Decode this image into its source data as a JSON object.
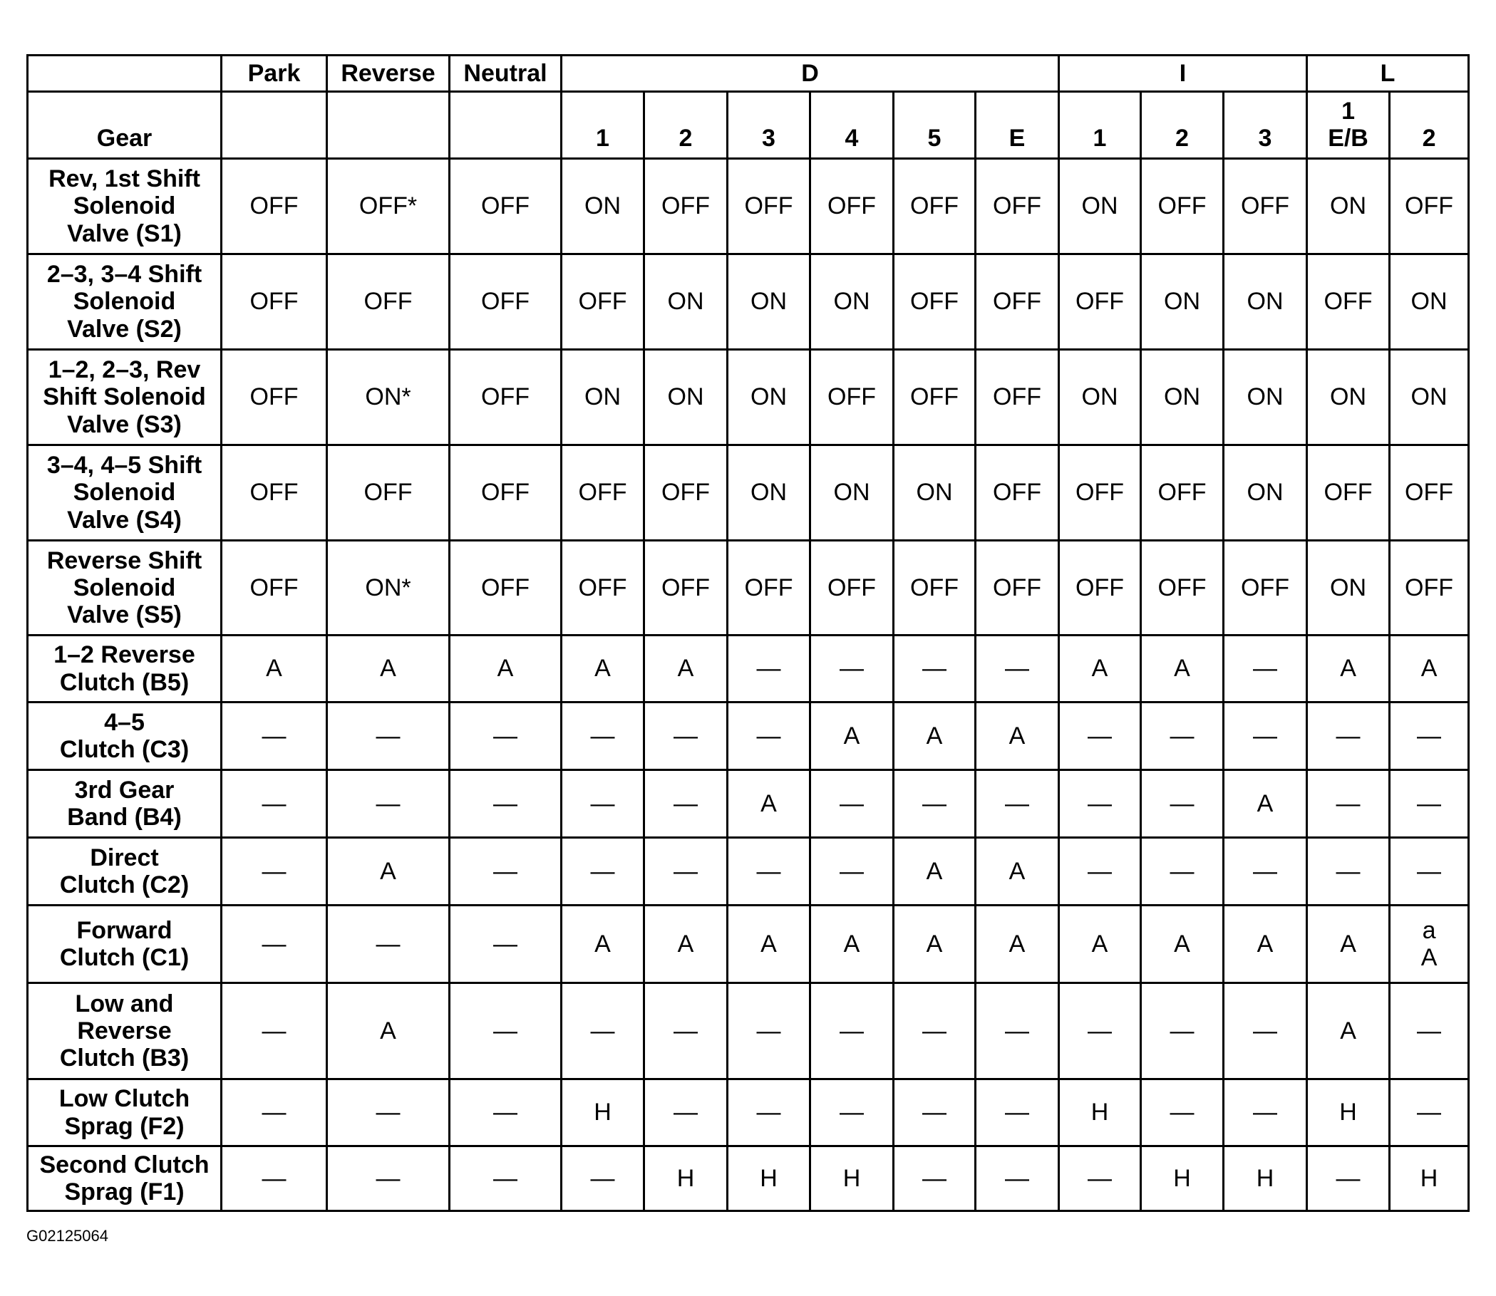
{
  "header": {
    "groups": [
      {
        "label": "",
        "span": 1
      },
      {
        "label": "Park",
        "span": 1
      },
      {
        "label": "Reverse",
        "span": 1
      },
      {
        "label": "Neutral",
        "span": 1
      },
      {
        "label": "D",
        "span": 6
      },
      {
        "label": "I",
        "span": 3
      },
      {
        "label": "L",
        "span": 2
      }
    ],
    "sub": [
      "Gear",
      "",
      "",
      "",
      "1",
      "2",
      "3",
      "4",
      "5",
      "E",
      "1",
      "2",
      "3",
      "1\nE/B",
      "2"
    ]
  },
  "rows": [
    {
      "label": "Rev, 1st Shift\nSolenoid\nValve (S1)",
      "values": [
        "OFF",
        "OFF*",
        "OFF",
        "ON",
        "OFF",
        "OFF",
        "OFF",
        "OFF",
        "OFF",
        "ON",
        "OFF",
        "OFF",
        "ON",
        "OFF"
      ]
    },
    {
      "label": "2–3, 3–4 Shift\nSolenoid\nValve (S2)",
      "values": [
        "OFF",
        "OFF",
        "OFF",
        "OFF",
        "ON",
        "ON",
        "ON",
        "OFF",
        "OFF",
        "OFF",
        "ON",
        "ON",
        "OFF",
        "ON"
      ]
    },
    {
      "label": "1–2, 2–3, Rev\nShift Solenoid\nValve (S3)",
      "values": [
        "OFF",
        "ON*",
        "OFF",
        "ON",
        "ON",
        "ON",
        "OFF",
        "OFF",
        "OFF",
        "ON",
        "ON",
        "ON",
        "ON",
        "ON"
      ]
    },
    {
      "label": "3–4, 4–5 Shift\nSolenoid\nValve (S4)",
      "values": [
        "OFF",
        "OFF",
        "OFF",
        "OFF",
        "OFF",
        "ON",
        "ON",
        "ON",
        "OFF",
        "OFF",
        "OFF",
        "ON",
        "OFF",
        "OFF"
      ]
    },
    {
      "label": "Reverse Shift\nSolenoid\nValve (S5)",
      "values": [
        "OFF",
        "ON*",
        "OFF",
        "OFF",
        "OFF",
        "OFF",
        "OFF",
        "OFF",
        "OFF",
        "OFF",
        "OFF",
        "OFF",
        "ON",
        "OFF"
      ]
    },
    {
      "label": "1–2 Reverse\nClutch (B5)",
      "values": [
        "A",
        "A",
        "A",
        "A",
        "A",
        "—",
        "—",
        "—",
        "—",
        "A",
        "A",
        "—",
        "A",
        "A"
      ]
    },
    {
      "label": "4–5\nClutch (C3)",
      "values": [
        "—",
        "—",
        "—",
        "—",
        "—",
        "—",
        "A",
        "A",
        "A",
        "—",
        "—",
        "—",
        "—",
        "—"
      ]
    },
    {
      "label": "3rd Gear\nBand (B4)",
      "values": [
        "—",
        "—",
        "—",
        "—",
        "—",
        "A",
        "—",
        "—",
        "—",
        "—",
        "—",
        "A",
        "—",
        "—"
      ]
    },
    {
      "label": "Direct\nClutch (C2)",
      "values": [
        "—",
        "A",
        "—",
        "—",
        "—",
        "—",
        "—",
        "A",
        "A",
        "—",
        "—",
        "—",
        "—",
        "—"
      ]
    },
    {
      "label": "Forward\nClutch (C1)",
      "values": [
        "—",
        "—",
        "—",
        "A",
        "A",
        "A",
        "A",
        "A",
        "A",
        "A",
        "A",
        "A",
        "A",
        "a\nA"
      ]
    },
    {
      "label": "Low and\nReverse\nClutch (B3)",
      "values": [
        "—",
        "A",
        "—",
        "—",
        "—",
        "—",
        "—",
        "—",
        "—",
        "—",
        "—",
        "—",
        "A",
        "—"
      ]
    },
    {
      "label": "Low Clutch\nSprag (F2)",
      "values": [
        "—",
        "—",
        "—",
        "H",
        "—",
        "—",
        "—",
        "—",
        "—",
        "H",
        "—",
        "—",
        "H",
        "—"
      ]
    },
    {
      "label": "Second Clutch\nSprag (F1)",
      "values": [
        "—",
        "—",
        "—",
        "—",
        "H",
        "H",
        "H",
        "—",
        "—",
        "—",
        "H",
        "H",
        "—",
        "H"
      ]
    }
  ],
  "footer": {
    "figure_id": "G02125064"
  }
}
